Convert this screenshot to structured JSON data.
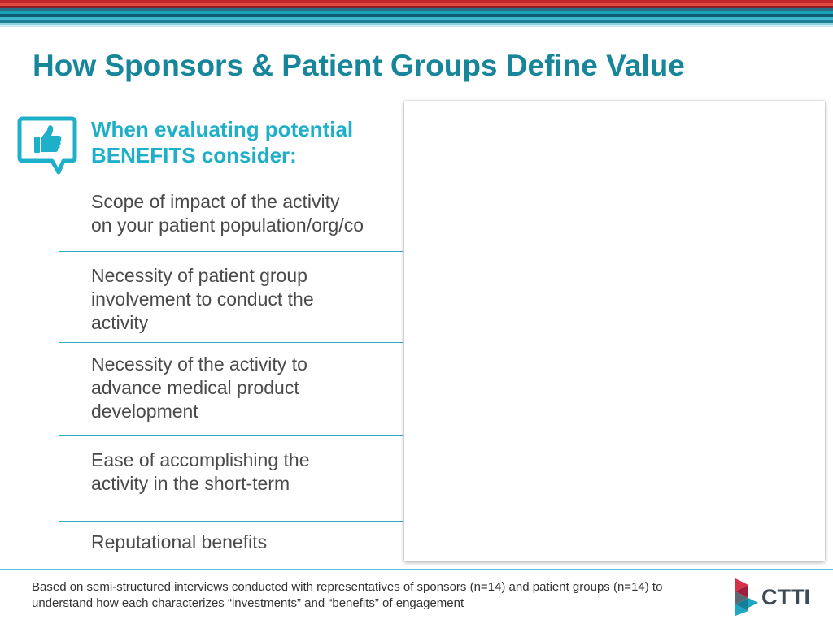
{
  "colors": {
    "title": "#17869a",
    "subhead": "#1fb0c9",
    "icon": "#1fb0c9",
    "body_text": "#4a4a4a",
    "divider": "#2fa9c0",
    "logo_red": "#d6324a",
    "logo_teal": "#1fa7c2",
    "logo_text": "#3e4a55"
  },
  "header": {
    "title": "How Sponsors & Patient Groups Define Value"
  },
  "benefits_section": {
    "icon": "thumbs-up-speech-bubble-icon",
    "heading": "When evaluating potential\nBENEFITS consider:",
    "items": [
      {
        "label": "Scope of impact of the activity\non your patient population/org/co"
      },
      {
        "label": "Necessity of patient group\ninvolvement to conduct the\nactivity"
      },
      {
        "label": "Necessity of the activity to\nadvance medical product\ndevelopment"
      },
      {
        "label": "Ease of accomplishing the\nactivity in the short-term"
      },
      {
        "label": "Reputational benefits"
      }
    ]
  },
  "footer": {
    "note": "Based on semi-structured interviews conducted with representatives of sponsors (n=14) and patient groups (n=14) to understand how each characterizes “investments” and “benefits” of engagement",
    "logo_text": "CTTI"
  }
}
